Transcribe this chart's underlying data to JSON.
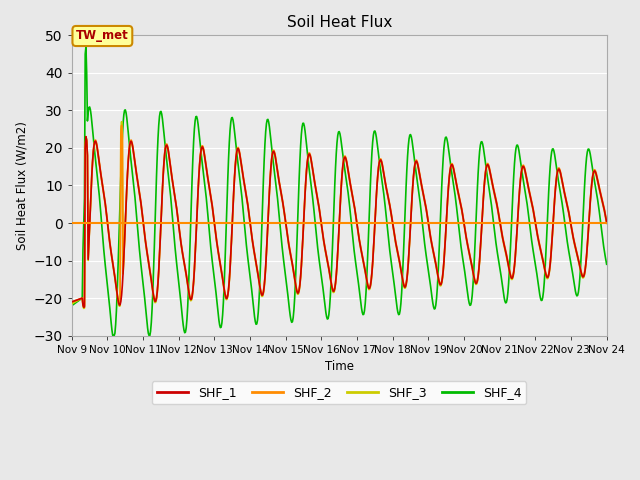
{
  "title": "Soil Heat Flux",
  "ylabel": "Soil Heat Flux (W/m2)",
  "xlabel": "Time",
  "ylim": [
    -30,
    50
  ],
  "xlim": [
    0,
    360
  ],
  "background_color": "#e8e8e8",
  "plot_bg_color": "#ebebeb",
  "grid_color": "#ffffff",
  "colors": {
    "SHF_1": "#cc0000",
    "SHF_2": "#ff8c00",
    "SHF_3": "#cccc00",
    "SHF_4": "#00bb00"
  },
  "xtick_labels": [
    "Nov 9",
    "Nov 10",
    "Nov 11",
    "Nov 12",
    "Nov 13",
    "Nov 14",
    "Nov 15",
    "Nov 16",
    "Nov 17",
    "Nov 18",
    "Nov 19",
    "Nov 20",
    "Nov 21",
    "Nov 22",
    "Nov 23",
    "Nov 24"
  ],
  "xtick_positions": [
    0,
    24,
    48,
    72,
    96,
    120,
    144,
    168,
    192,
    216,
    240,
    264,
    288,
    312,
    336,
    360
  ],
  "annotation_text": "TW_met",
  "annotation_bg": "#ffff99",
  "annotation_border": "#cc8800",
  "line_width": 1.2,
  "legend_entries": [
    "SHF_1",
    "SHF_2",
    "SHF_3",
    "SHF_4"
  ]
}
